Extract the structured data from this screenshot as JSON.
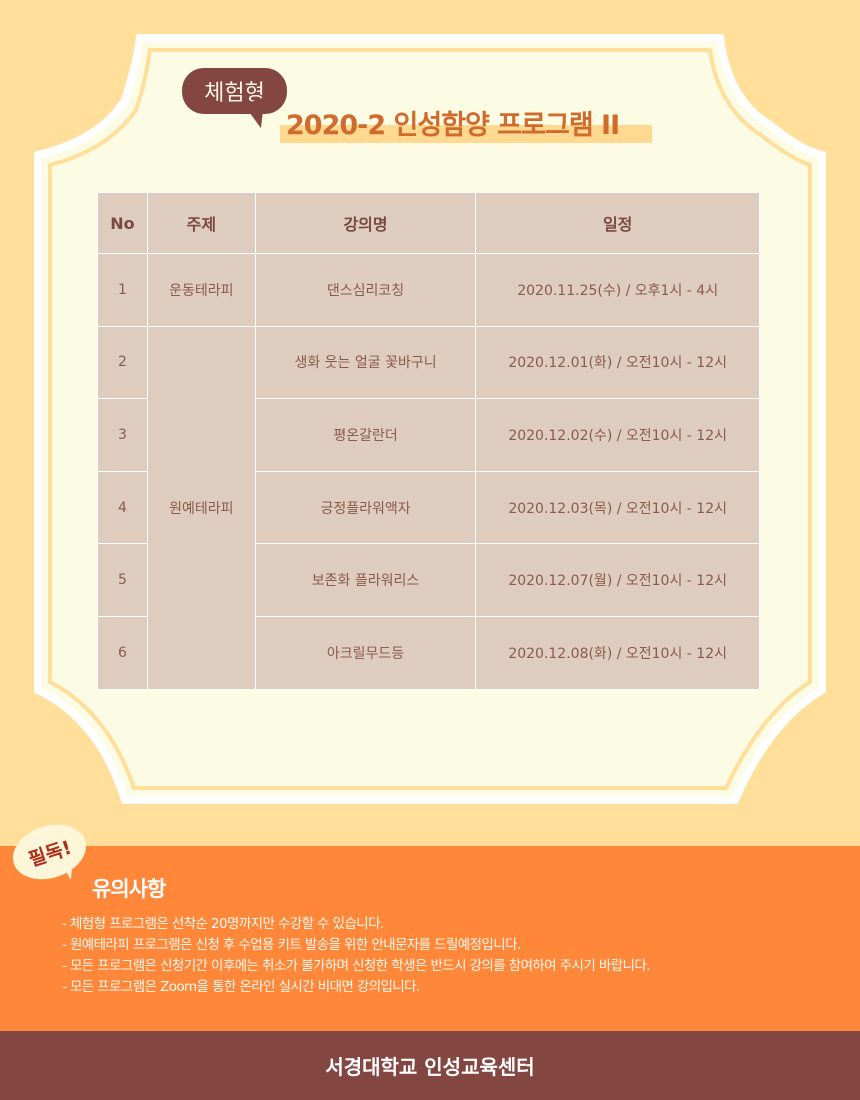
{
  "badge": "체험형",
  "title": "2020-2 인성함양 프로그램 II",
  "table": {
    "headers": [
      "No",
      "주제",
      "강의명",
      "일정"
    ],
    "rows": [
      {
        "no": "1",
        "topic": "운동테라피",
        "name": "댄스심리코칭",
        "date": "2020.11.25(수) / 오후1시 - 4시"
      },
      {
        "no": "2",
        "topic": "원예테라피",
        "name": "생화 웃는 얼굴 꽃바구니",
        "date": "2020.12.01(화) / 오전10시 - 12시"
      },
      {
        "no": "3",
        "name": "평온갈란더",
        "date": "2020.12.02(수) / 오전10시 - 12시"
      },
      {
        "no": "4",
        "name": "긍정플라워액자",
        "date": "2020.12.03(목) / 오전10시 - 12시"
      },
      {
        "no": "5",
        "name": "보존화 플라워리스",
        "date": "2020.12.07(월) / 오전10시 - 12시"
      },
      {
        "no": "6",
        "name": "아크릴무드등",
        "date": "2020.12.08(화) / 오전10시 - 12시"
      }
    ]
  },
  "notice": {
    "tag": "필독!",
    "title": "유의사항",
    "items": [
      "- 체험형 프로그램은 선착순 20명까지만 수강할 수 있습니다.",
      "- 원예테라피 프로그램은 신청 후 수업용 키트 발송을 위한 안내문자를 드릴예정입니다.",
      "- 모든 프로그램은 신청기간 이후에는 취소가 불가하며 신청한 학생은 반드시 강의를 참여하여 주시기 바랍니다.",
      "- 모든 프로그램은 Zoom을 통한 온라인 실시간 비대면 강의입니다."
    ]
  },
  "footer": "서경대학교 인성교육센터",
  "colors": {
    "background": "#ffdf99",
    "frame": "#fcfbe3",
    "table": "#decdbf",
    "notice": "#ff873a",
    "footer": "#834641",
    "title": "#d16b2d"
  }
}
